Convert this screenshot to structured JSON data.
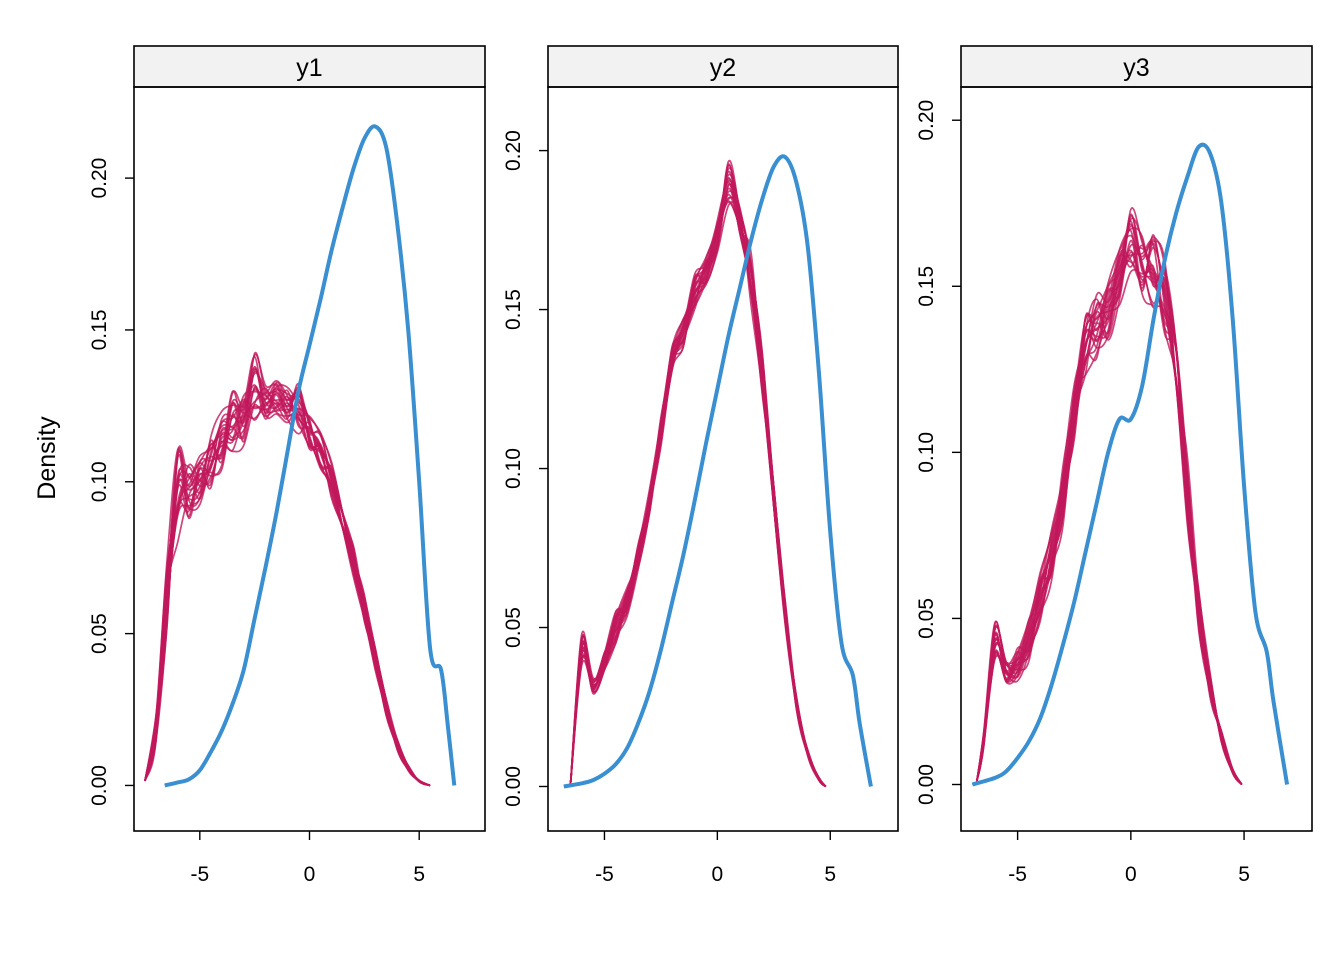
{
  "chart_data": {
    "type": "line",
    "ylabel": "Density",
    "legend": "none",
    "grid": false,
    "colors": {
      "observed": "#3A8FD1",
      "imputed": "#C0185B",
      "strip_fill": "#F2F2F2"
    },
    "panels": [
      {
        "strip": "y1",
        "xlim": [
          -8,
          8
        ],
        "ylim": [
          -0.015,
          0.23
        ],
        "xticks": [
          -5,
          0,
          5
        ],
        "xtick_labels": [
          "-5",
          "0",
          "5"
        ],
        "yticks": [
          0,
          0.05,
          0.1,
          0.15,
          0.2
        ],
        "ytick_labels": [
          "0.00",
          "0.05",
          "0.10",
          "0.15",
          "0.20"
        ],
        "observed": {
          "x": [
            -6.6,
            -6.0,
            -5.5,
            -5.0,
            -4.5,
            -4.0,
            -3.5,
            -3.0,
            -2.5,
            -2.0,
            -1.5,
            -1.0,
            -0.5,
            0.0,
            0.5,
            1.0,
            1.5,
            2.0,
            2.5,
            3.0,
            3.5,
            4.0,
            4.5,
            5.0,
            5.5,
            6.0,
            6.3,
            6.6
          ],
          "y": [
            0.0,
            0.001,
            0.002,
            0.005,
            0.011,
            0.018,
            0.027,
            0.038,
            0.055,
            0.072,
            0.09,
            0.11,
            0.13,
            0.145,
            0.16,
            0.176,
            0.19,
            0.203,
            0.213,
            0.217,
            0.21,
            0.185,
            0.15,
            0.1,
            0.045,
            0.038,
            0.02,
            0.0
          ]
        },
        "imputed_envelope": {
          "x": [
            -7.5,
            -7.0,
            -6.5,
            -6.0,
            -5.5,
            -5.0,
            -4.5,
            -4.0,
            -3.5,
            -3.0,
            -2.5,
            -2.0,
            -1.5,
            -1.0,
            -0.5,
            0.0,
            0.5,
            1.0,
            1.5,
            2.0,
            2.5,
            3.0,
            3.5,
            4.0,
            4.5,
            5.0,
            5.5
          ],
          "low": [
            0.0,
            0.01,
            0.04,
            0.07,
            0.08,
            0.085,
            0.09,
            0.095,
            0.1,
            0.105,
            0.11,
            0.115,
            0.118,
            0.115,
            0.11,
            0.105,
            0.098,
            0.09,
            0.08,
            0.065,
            0.05,
            0.035,
            0.02,
            0.01,
            0.004,
            0.001,
            0.0
          ],
          "high": [
            0.003,
            0.03,
            0.09,
            0.13,
            0.12,
            0.12,
            0.125,
            0.135,
            0.145,
            0.14,
            0.16,
            0.14,
            0.145,
            0.14,
            0.143,
            0.13,
            0.125,
            0.115,
            0.1,
            0.085,
            0.068,
            0.05,
            0.033,
            0.018,
            0.008,
            0.002,
            0.0
          ]
        }
      },
      {
        "strip": "y2",
        "xlim": [
          -7.5,
          8
        ],
        "ylim": [
          -0.014,
          0.22
        ],
        "xticks": [
          -5,
          0,
          5
        ],
        "xtick_labels": [
          "-5",
          "0",
          "5"
        ],
        "yticks": [
          0,
          0.05,
          0.1,
          0.15,
          0.2
        ],
        "ytick_labels": [
          "0.00",
          "0.05",
          "0.10",
          "0.15",
          "0.20"
        ],
        "observed": {
          "x": [
            -6.8,
            -6.0,
            -5.5,
            -5.0,
            -4.5,
            -4.0,
            -3.5,
            -3.0,
            -2.5,
            -2.0,
            -1.5,
            -1.0,
            -0.5,
            0.0,
            0.5,
            1.0,
            1.5,
            2.0,
            2.5,
            3.0,
            3.5,
            4.0,
            4.5,
            5.0,
            5.5,
            6.0,
            6.3,
            6.8
          ],
          "y": [
            0.0,
            0.001,
            0.002,
            0.004,
            0.007,
            0.012,
            0.02,
            0.03,
            0.043,
            0.058,
            0.073,
            0.09,
            0.108,
            0.125,
            0.142,
            0.157,
            0.172,
            0.185,
            0.195,
            0.198,
            0.19,
            0.17,
            0.13,
            0.08,
            0.045,
            0.035,
            0.02,
            0.0
          ]
        },
        "imputed_envelope": {
          "x": [
            -6.5,
            -6.0,
            -5.5,
            -5.0,
            -4.5,
            -4.0,
            -3.5,
            -3.0,
            -2.5,
            -2.0,
            -1.5,
            -1.0,
            -0.5,
            0.0,
            0.5,
            1.0,
            1.5,
            2.0,
            2.5,
            3.0,
            3.5,
            4.0,
            4.5,
            4.8
          ],
          "low": [
            0.0,
            0.03,
            0.025,
            0.03,
            0.035,
            0.045,
            0.06,
            0.08,
            0.1,
            0.125,
            0.13,
            0.14,
            0.15,
            0.16,
            0.17,
            0.165,
            0.14,
            0.11,
            0.075,
            0.045,
            0.02,
            0.008,
            0.001,
            0.0
          ],
          "high": [
            0.002,
            0.05,
            0.035,
            0.045,
            0.058,
            0.065,
            0.078,
            0.095,
            0.118,
            0.14,
            0.15,
            0.165,
            0.17,
            0.18,
            0.2,
            0.185,
            0.17,
            0.14,
            0.1,
            0.06,
            0.03,
            0.012,
            0.003,
            0.0
          ]
        }
      },
      {
        "strip": "y3",
        "xlim": [
          -7.5,
          8
        ],
        "ylim": [
          -0.014,
          0.21
        ],
        "xticks": [
          -5,
          0,
          5
        ],
        "xtick_labels": [
          "-5",
          "0",
          "5"
        ],
        "yticks": [
          0,
          0.05,
          0.1,
          0.15,
          0.2
        ],
        "ytick_labels": [
          "0.00",
          "0.05",
          "0.10",
          "0.15",
          "0.20"
        ],
        "observed": {
          "x": [
            -7.0,
            -6.0,
            -5.5,
            -5.0,
            -4.5,
            -4.0,
            -3.5,
            -3.0,
            -2.5,
            -2.0,
            -1.5,
            -1.0,
            -0.5,
            0.0,
            0.5,
            1.0,
            1.5,
            2.0,
            2.5,
            3.0,
            3.5,
            4.0,
            4.5,
            5.0,
            5.5,
            6.0,
            6.3,
            6.9
          ],
          "y": [
            0.0,
            0.002,
            0.004,
            0.008,
            0.013,
            0.02,
            0.03,
            0.042,
            0.055,
            0.07,
            0.085,
            0.1,
            0.11,
            0.11,
            0.12,
            0.14,
            0.158,
            0.172,
            0.183,
            0.192,
            0.19,
            0.175,
            0.14,
            0.09,
            0.052,
            0.04,
            0.025,
            0.0
          ]
        },
        "imputed_envelope": {
          "x": [
            -6.8,
            -6.5,
            -6.0,
            -5.5,
            -5.0,
            -4.5,
            -4.0,
            -3.5,
            -3.0,
            -2.5,
            -2.0,
            -1.5,
            -1.0,
            -0.5,
            0.0,
            0.5,
            1.0,
            1.5,
            2.0,
            2.5,
            3.0,
            3.5,
            4.0,
            4.5,
            4.9
          ],
          "low": [
            0.0,
            0.01,
            0.035,
            0.028,
            0.03,
            0.035,
            0.045,
            0.06,
            0.075,
            0.1,
            0.12,
            0.125,
            0.13,
            0.14,
            0.15,
            0.145,
            0.14,
            0.13,
            0.11,
            0.075,
            0.045,
            0.025,
            0.012,
            0.003,
            0.0
          ],
          "high": [
            0.002,
            0.02,
            0.06,
            0.045,
            0.05,
            0.062,
            0.078,
            0.09,
            0.11,
            0.14,
            0.16,
            0.165,
            0.17,
            0.18,
            0.195,
            0.185,
            0.19,
            0.18,
            0.155,
            0.115,
            0.07,
            0.04,
            0.02,
            0.006,
            0.0
          ]
        }
      }
    ]
  }
}
